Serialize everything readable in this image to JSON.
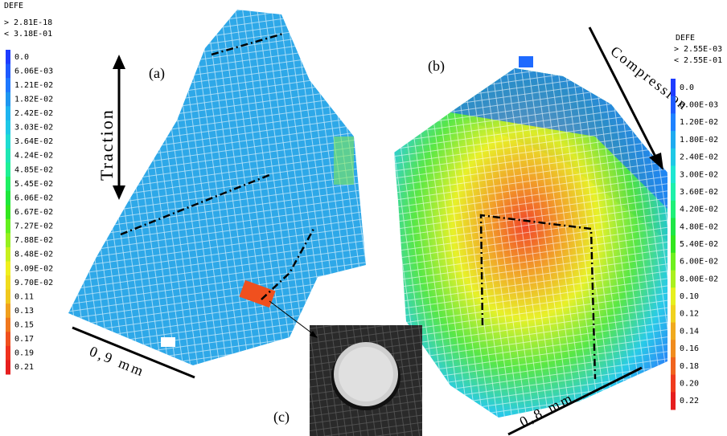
{
  "left_legend": {
    "title": "DEFE",
    "max": "> 2.81E-18",
    "min": "< 3.18E-01",
    "items": [
      {
        "label": "0.0",
        "color": "#1e3cff"
      },
      {
        "label": "6.06E-03",
        "color": "#1e5aff"
      },
      {
        "label": "1.21E-02",
        "color": "#1e78ff"
      },
      {
        "label": "1.82E-02",
        "color": "#1e96f0"
      },
      {
        "label": "2.42E-02",
        "color": "#1eb4f0"
      },
      {
        "label": "3.03E-02",
        "color": "#1ec8e6"
      },
      {
        "label": "3.64E-02",
        "color": "#1edcd2"
      },
      {
        "label": "4.24E-02",
        "color": "#1ee6b4"
      },
      {
        "label": "4.85E-02",
        "color": "#1ef096"
      },
      {
        "label": "5.45E-02",
        "color": "#1ef064"
      },
      {
        "label": "6.06E-02",
        "color": "#1ee63c"
      },
      {
        "label": "6.67E-02",
        "color": "#32e61e"
      },
      {
        "label": "7.27E-02",
        "color": "#64f01e"
      },
      {
        "label": "7.88E-02",
        "color": "#96f01e"
      },
      {
        "label": "8.48E-02",
        "color": "#c8f01e"
      },
      {
        "label": "9.09E-02",
        "color": "#f0f01e"
      },
      {
        "label": "9.70E-02",
        "color": "#f0dc1e"
      },
      {
        "label": "0.11",
        "color": "#f0c81e"
      },
      {
        "label": "0.13",
        "color": "#f0a01e"
      },
      {
        "label": "0.15",
        "color": "#f0781e"
      },
      {
        "label": "0.17",
        "color": "#f0501e"
      },
      {
        "label": "0.19",
        "color": "#f0321e"
      },
      {
        "label": "0.21",
        "color": "#e61e1e"
      }
    ]
  },
  "right_legend": {
    "title": "DEFE",
    "max": "> 2.55E-03",
    "min": "< 2.55E-01",
    "items": [
      {
        "label": "0.0",
        "color": "#1e3cff"
      },
      {
        "label": "6.00E-03",
        "color": "#1e5aff"
      },
      {
        "label": "1.20E-02",
        "color": "#1e82ff"
      },
      {
        "label": "1.80E-02",
        "color": "#1eaaf0"
      },
      {
        "label": "2.40E-02",
        "color": "#1ec8e6"
      },
      {
        "label": "3.00E-02",
        "color": "#1ee6d2"
      },
      {
        "label": "3.60E-02",
        "color": "#1ef0aa"
      },
      {
        "label": "4.20E-02",
        "color": "#1ef078"
      },
      {
        "label": "4.80E-02",
        "color": "#1ee646"
      },
      {
        "label": "5.40E-02",
        "color": "#32e61e"
      },
      {
        "label": "6.00E-02",
        "color": "#6ef01e"
      },
      {
        "label": "8.00E-02",
        "color": "#aaf01e"
      },
      {
        "label": "0.10",
        "color": "#e6f01e"
      },
      {
        "label": "0.12",
        "color": "#f0d21e"
      },
      {
        "label": "0.14",
        "color": "#f0aa1e"
      },
      {
        "label": "0.16",
        "color": "#f08c1e"
      },
      {
        "label": "0.18",
        "color": "#f0641e"
      },
      {
        "label": "0.20",
        "color": "#f03c1e"
      },
      {
        "label": "0.22",
        "color": "#e61e1e"
      }
    ]
  },
  "panels": {
    "a": "(a)",
    "b": "(b)",
    "c": "(c)"
  },
  "annotations": {
    "traction": "Traction",
    "compression": "Compression",
    "scale_a": "0,9 mm",
    "scale_b": "0,8 mm"
  }
}
